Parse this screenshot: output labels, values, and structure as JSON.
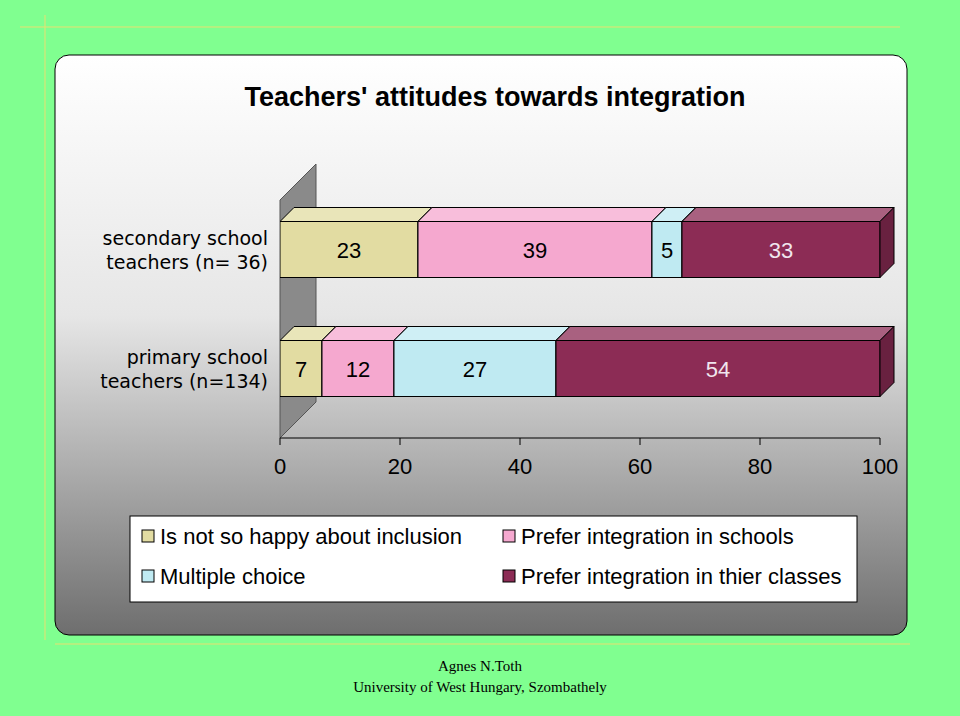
{
  "chart_data": {
    "type": "bar",
    "title": "Teachers' attitudes towards integration",
    "orientation": "horizontal",
    "stacked": true,
    "data_labels": true,
    "grid": false,
    "legend": "bottom",
    "categories": [
      "secondary school teachers (n= 36)",
      "primary school teachers (n=134)"
    ],
    "series": [
      {
        "name": "Is not so happy about inclusion",
        "color": "#e2dca2",
        "values": [
          23,
          7
        ]
      },
      {
        "name": "Prefer integration in schools",
        "color": "#f5a8cf",
        "values": [
          39,
          12
        ]
      },
      {
        "name": "Multiple choice",
        "color": "#bfeaf2",
        "values": [
          5,
          27
        ]
      },
      {
        "name": "Prefer integration in thier classes",
        "color": "#8c2c55",
        "values": [
          33,
          54
        ]
      }
    ],
    "xlim": [
      0,
      100
    ],
    "xticks": [
      0,
      20,
      40,
      60,
      80,
      100
    ],
    "annotations": [
      "Agnes N.Toth",
      "University of West Hungary, Szombathely"
    ]
  }
}
